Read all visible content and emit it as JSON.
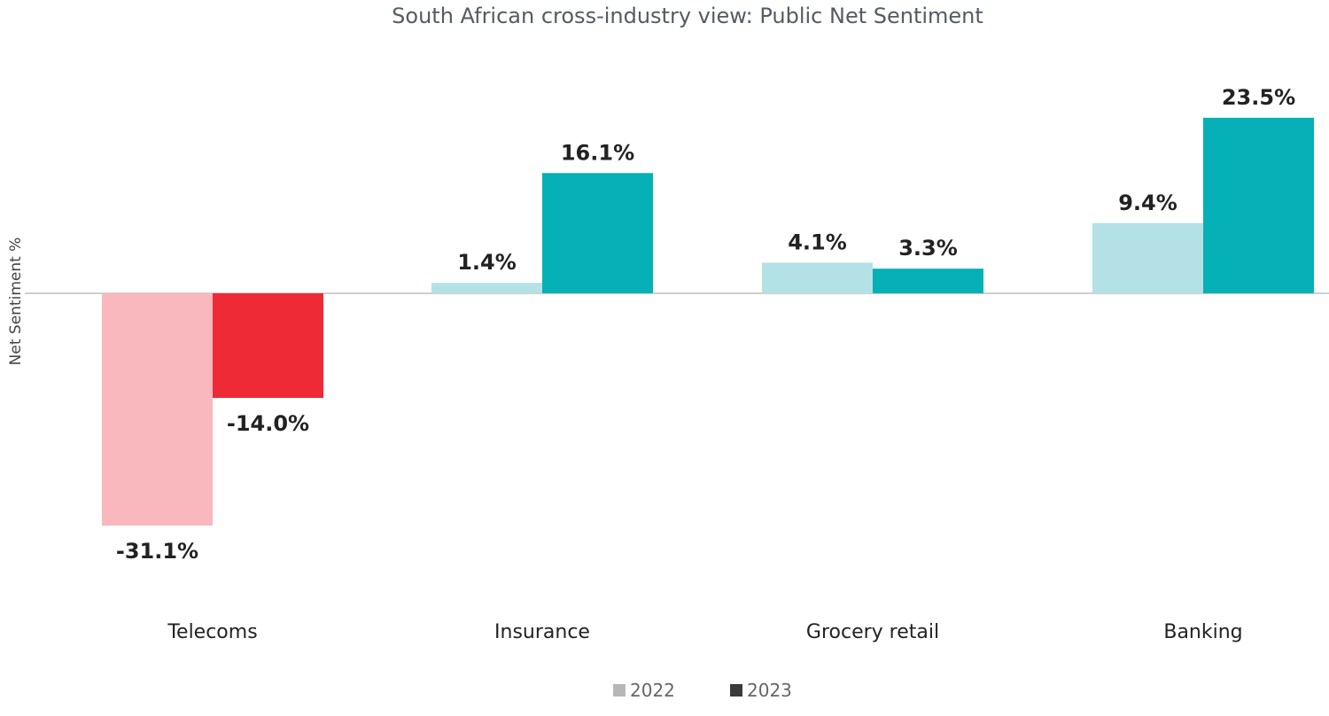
{
  "chart_data": {
    "type": "bar",
    "title": "South African cross-industry view: Public Net Sentiment",
    "xlabel": "",
    "ylabel": "Net Sentiment %",
    "categories": [
      "Telecoms",
      "Insurance",
      "Grocery retail",
      "Banking"
    ],
    "series": [
      {
        "name": "2022",
        "values": [
          -31.1,
          1.4,
          4.1,
          9.4
        ],
        "labels": [
          "-31.1%",
          "1.4%",
          "4.1%",
          "9.4%"
        ],
        "legend_color": "#b7b7b7",
        "bar_colors": [
          "#f8b8bd",
          "#b3e1e6",
          "#b3e1e6",
          "#b3e1e6"
        ]
      },
      {
        "name": "2023",
        "values": [
          -14.0,
          16.1,
          3.3,
          23.5
        ],
        "labels": [
          "-14.0%",
          "16.1%",
          "3.3%",
          "23.5%"
        ],
        "legend_color": "#3a3a3a",
        "bar_colors": [
          "#ee2a37",
          "#05b0b7",
          "#05b0b7",
          "#05b0b7"
        ]
      }
    ],
    "ylim": [
      -38,
      32
    ],
    "grid": false,
    "zero_line": true,
    "legend_position": "bottom-center"
  },
  "colors": {
    "negative_2022": "#f8b8bd",
    "negative_2023": "#ee2a37",
    "positive_2022": "#b3e1e6",
    "positive_2023": "#05b0b7",
    "zero_line": "#bfbfbf"
  }
}
